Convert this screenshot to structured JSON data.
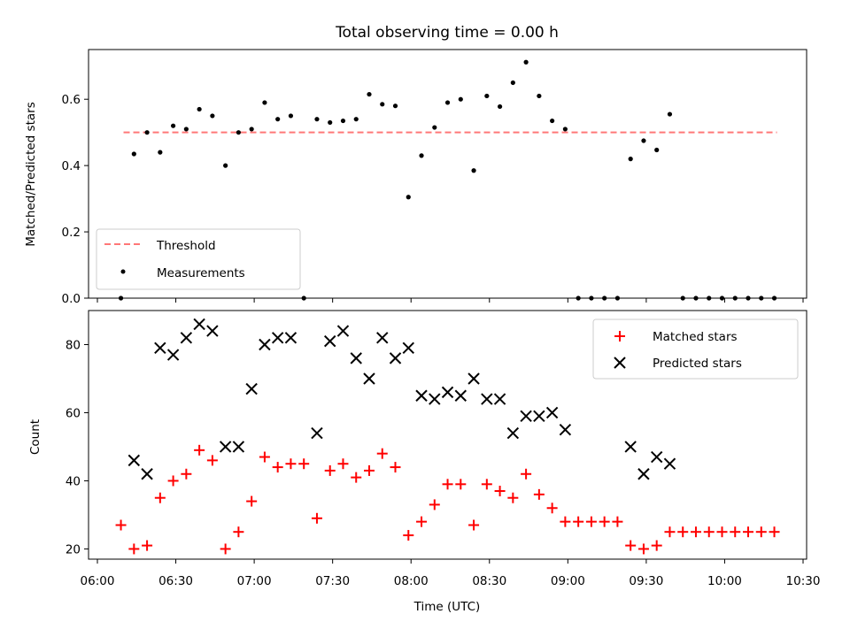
{
  "chart_data": [
    {
      "type": "scatter",
      "title": "Total observing time = 0.00 h",
      "ylabel": "Matched/Predicted stars",
      "ylim": [
        0,
        0.75
      ],
      "yticks": [
        "0.0",
        "0.2",
        "0.4",
        "0.6"
      ],
      "grid": false,
      "legend_position": "lower-left",
      "threshold": {
        "name": "Threshold",
        "value": 0.5,
        "x_start": "06:10",
        "x_end": "10:20",
        "color": "#ff7777"
      },
      "series": [
        {
          "name": "Measurements",
          "color": "#000000",
          "points": [
            [
              "06:09",
              0.0
            ],
            [
              "06:14",
              0.435
            ],
            [
              "06:19",
              0.5
            ],
            [
              "06:24",
              0.44
            ],
            [
              "06:29",
              0.52
            ],
            [
              "06:34",
              0.51
            ],
            [
              "06:39",
              0.57
            ],
            [
              "06:44",
              0.55
            ],
            [
              "06:49",
              0.4
            ],
            [
              "06:54",
              0.5
            ],
            [
              "06:59",
              0.51
            ],
            [
              "07:04",
              0.59
            ],
            [
              "07:09",
              0.54
            ],
            [
              "07:14",
              0.55
            ],
            [
              "07:19",
              0.0
            ],
            [
              "07:24",
              0.54
            ],
            [
              "07:29",
              0.53
            ],
            [
              "07:34",
              0.535
            ],
            [
              "07:39",
              0.54
            ],
            [
              "07:44",
              0.615
            ],
            [
              "07:49",
              0.585
            ],
            [
              "07:54",
              0.58
            ],
            [
              "07:59",
              0.305
            ],
            [
              "08:04",
              0.43
            ],
            [
              "08:09",
              0.515
            ],
            [
              "08:14",
              0.59
            ],
            [
              "08:19",
              0.6
            ],
            [
              "08:24",
              0.385
            ],
            [
              "08:29",
              0.61
            ],
            [
              "08:34",
              0.578
            ],
            [
              "08:39",
              0.65
            ],
            [
              "08:44",
              0.712
            ],
            [
              "08:49",
              0.61
            ],
            [
              "08:54",
              0.535
            ],
            [
              "08:59",
              0.51
            ],
            [
              "09:04",
              0.0
            ],
            [
              "09:09",
              0.0
            ],
            [
              "09:14",
              0.0
            ],
            [
              "09:19",
              0.0
            ],
            [
              "09:24",
              0.42
            ],
            [
              "09:29",
              0.475
            ],
            [
              "09:34",
              0.447
            ],
            [
              "09:39",
              0.555
            ],
            [
              "09:44",
              0.0
            ],
            [
              "09:49",
              0.0
            ],
            [
              "09:54",
              0.0
            ],
            [
              "09:59",
              0.0
            ],
            [
              "10:04",
              0.0
            ],
            [
              "10:09",
              0.0
            ],
            [
              "10:14",
              0.0
            ],
            [
              "10:19",
              0.0
            ]
          ]
        }
      ]
    },
    {
      "type": "scatter",
      "xlabel": "Time (UTC)",
      "ylabel": "Count",
      "ylim": [
        17,
        90
      ],
      "yticks": [
        "20",
        "40",
        "60",
        "80"
      ],
      "xticks": [
        "06:00",
        "06:30",
        "07:00",
        "07:30",
        "08:00",
        "08:30",
        "09:00",
        "09:30",
        "10:00",
        "10:30"
      ],
      "grid": false,
      "legend_position": "upper-right",
      "series": [
        {
          "name": "Matched stars",
          "marker": "plus",
          "color": "#ff0000",
          "points": [
            [
              "06:09",
              27
            ],
            [
              "06:14",
              20
            ],
            [
              "06:19",
              21
            ],
            [
              "06:24",
              35
            ],
            [
              "06:29",
              40
            ],
            [
              "06:34",
              42
            ],
            [
              "06:39",
              49
            ],
            [
              "06:44",
              46
            ],
            [
              "06:49",
              20
            ],
            [
              "06:54",
              25
            ],
            [
              "06:59",
              34
            ],
            [
              "07:04",
              47
            ],
            [
              "07:09",
              44
            ],
            [
              "07:14",
              45
            ],
            [
              "07:19",
              45
            ],
            [
              "07:24",
              29
            ],
            [
              "07:29",
              43
            ],
            [
              "07:34",
              45
            ],
            [
              "07:39",
              41
            ],
            [
              "07:44",
              43
            ],
            [
              "07:49",
              48
            ],
            [
              "07:54",
              44
            ],
            [
              "07:59",
              24
            ],
            [
              "08:04",
              28
            ],
            [
              "08:09",
              33
            ],
            [
              "08:14",
              39
            ],
            [
              "08:19",
              39
            ],
            [
              "08:24",
              27
            ],
            [
              "08:29",
              39
            ],
            [
              "08:34",
              37
            ],
            [
              "08:39",
              35
            ],
            [
              "08:44",
              42
            ],
            [
              "08:49",
              36
            ],
            [
              "08:54",
              32
            ],
            [
              "08:59",
              28
            ],
            [
              "09:04",
              28
            ],
            [
              "09:09",
              28
            ],
            [
              "09:14",
              28
            ],
            [
              "09:19",
              28
            ],
            [
              "09:24",
              21
            ],
            [
              "09:29",
              20
            ],
            [
              "09:34",
              21
            ],
            [
              "09:39",
              25
            ],
            [
              "09:44",
              25
            ],
            [
              "09:49",
              25
            ],
            [
              "09:54",
              25
            ],
            [
              "09:59",
              25
            ],
            [
              "10:04",
              25
            ],
            [
              "10:09",
              25
            ],
            [
              "10:14",
              25
            ],
            [
              "10:19",
              25
            ]
          ]
        },
        {
          "name": "Predicted stars",
          "marker": "x",
          "color": "#000000",
          "points": [
            [
              "06:14",
              46
            ],
            [
              "06:19",
              42
            ],
            [
              "06:24",
              79
            ],
            [
              "06:29",
              77
            ],
            [
              "06:34",
              82
            ],
            [
              "06:39",
              86
            ],
            [
              "06:44",
              84
            ],
            [
              "06:49",
              50
            ],
            [
              "06:54",
              50
            ],
            [
              "06:59",
              67
            ],
            [
              "07:04",
              80
            ],
            [
              "07:09",
              82
            ],
            [
              "07:14",
              82
            ],
            [
              "07:24",
              54
            ],
            [
              "07:29",
              81
            ],
            [
              "07:34",
              84
            ],
            [
              "07:39",
              76
            ],
            [
              "07:44",
              70
            ],
            [
              "07:49",
              82
            ],
            [
              "07:54",
              76
            ],
            [
              "07:59",
              79
            ],
            [
              "08:04",
              65
            ],
            [
              "08:09",
              64
            ],
            [
              "08:14",
              66
            ],
            [
              "08:19",
              65
            ],
            [
              "08:24",
              70
            ],
            [
              "08:29",
              64
            ],
            [
              "08:34",
              64
            ],
            [
              "08:39",
              54
            ],
            [
              "08:44",
              59
            ],
            [
              "08:49",
              59
            ],
            [
              "08:54",
              60
            ],
            [
              "08:59",
              55
            ],
            [
              "09:24",
              50
            ],
            [
              "09:29",
              42
            ],
            [
              "09:34",
              47
            ],
            [
              "09:39",
              45
            ]
          ]
        }
      ]
    }
  ]
}
